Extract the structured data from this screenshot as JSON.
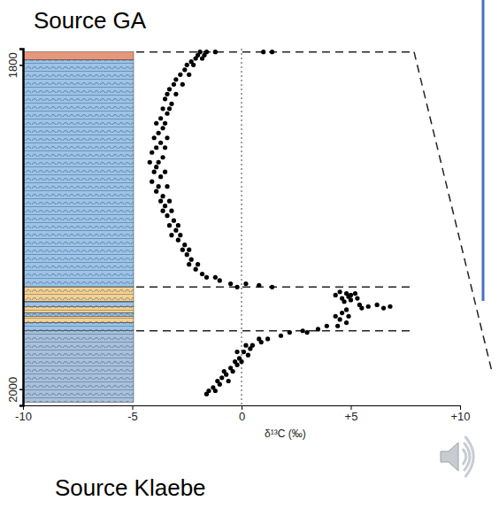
{
  "chart_data": {
    "type": "scatter",
    "title": "Source GA",
    "caption": "Source Klaebe",
    "x_label": "δ¹³C (‰)",
    "xlim": [
      -10,
      10
    ],
    "xticks": [
      -10,
      -5,
      0,
      {
        "value": 5,
        "label": "+5"
      },
      {
        "value": 10,
        "label": "+10"
      }
    ],
    "ylim": [
      2010,
      1790
    ],
    "yticks": [
      1800,
      2000
    ],
    "color": "#000000",
    "marker": "circle",
    "vline": 0,
    "guides": [
      1792,
      1937,
      1964
    ],
    "strata": [
      {
        "top": 1792,
        "bottom": 1797,
        "color": "#e8967a"
      },
      {
        "top": 1797,
        "bottom": 1937,
        "color": "#9dc3e6"
      },
      {
        "top": 1937,
        "bottom": 1946,
        "color": "#f6d08e"
      },
      {
        "top": 1946,
        "bottom": 1949,
        "color": "#9dc3e6"
      },
      {
        "top": 1949,
        "bottom": 1953,
        "color": "#f6d08e"
      },
      {
        "top": 1953,
        "bottom": 1955,
        "color": "#9dc3e6"
      },
      {
        "top": 1955,
        "bottom": 1959,
        "color": "#f6d08e"
      },
      {
        "top": 1959,
        "bottom": 1964,
        "color": "#9dc3e6"
      },
      {
        "top": 1964,
        "bottom": 2008,
        "color": "#a9c0da"
      }
    ],
    "x": [
      -1.9,
      -1.6,
      1.0,
      1.4,
      -1.2,
      -2.0,
      -1.7,
      -2.1,
      -1.8,
      -2.3,
      -2.2,
      -2.5,
      -2.6,
      -2.8,
      -2.4,
      -3.0,
      -3.1,
      -2.7,
      -3.3,
      -3.0,
      -3.4,
      -3.5,
      -3.2,
      -3.6,
      -3.3,
      -3.4,
      -3.7,
      -3.5,
      -3.9,
      -3.6,
      -3.8,
      -3.4,
      -4.0,
      -3.7,
      -3.9,
      -3.5,
      -4.1,
      -3.6,
      -3.8,
      -4.2,
      -3.9,
      -3.5,
      -4.0,
      -3.7,
      -4.1,
      -3.8,
      -3.4,
      -3.9,
      -3.6,
      -3.7,
      -3.3,
      -3.5,
      -3.2,
      -3.6,
      -3.4,
      -3.1,
      -3.3,
      -2.9,
      -3.0,
      -2.8,
      -3.2,
      -2.9,
      -2.6,
      -2.7,
      -2.4,
      -2.5,
      -2.3,
      -2.0,
      -2.4,
      -2.1,
      -1.8,
      -1.6,
      -1.2,
      -1.0,
      -0.5,
      0.2,
      0.8,
      1.4,
      -0.2,
      4.5,
      4.8,
      5.2,
      4.3,
      5.0,
      4.9,
      5.3,
      4.6,
      5.0,
      4.7,
      5.4,
      6.2,
      5.8,
      6.8,
      5.5,
      6.5,
      4.8,
      4.6,
      4.9,
      4.3,
      4.5,
      4.8,
      4.4,
      3.9,
      3.5,
      2.8,
      2.2,
      3.0,
      1.8,
      1.2,
      0.8,
      0.9,
      0.5,
      0.2,
      0.4,
      0.1,
      -0.2,
      0.3,
      -0.1,
      -0.3,
      0,
      -0.2,
      -0.5,
      -0.4,
      -0.8,
      -0.7,
      -0.9,
      -1.1,
      -0.6,
      -1.0,
      -1.3,
      -1.5,
      -1.2,
      -1.6
    ],
    "values": [
      1792,
      1792,
      1792,
      1792,
      1792,
      1794,
      1794,
      1796,
      1796,
      1798,
      1800,
      1800,
      1803,
      1806,
      1806,
      1809,
      1812,
      1812,
      1815,
      1818,
      1818,
      1821,
      1824,
      1827,
      1827,
      1830,
      1833,
      1836,
      1836,
      1839,
      1842,
      1845,
      1845,
      1848,
      1851,
      1851,
      1854,
      1857,
      1860,
      1860,
      1863,
      1866,
      1866,
      1869,
      1872,
      1875,
      1875,
      1878,
      1881,
      1884,
      1884,
      1887,
      1890,
      1890,
      1893,
      1896,
      1899,
      1899,
      1902,
      1905,
      1905,
      1908,
      1911,
      1914,
      1914,
      1917,
      1920,
      1923,
      1923,
      1926,
      1929,
      1931,
      1931,
      1933,
      1935,
      1935,
      1936,
      1937,
      1937,
      1940,
      1941,
      1941,
      1942,
      1942,
      1943,
      1944,
      1944,
      1945,
      1946,
      1948,
      1948,
      1949,
      1949,
      1950,
      1950,
      1951,
      1953,
      1955,
      1955,
      1957,
      1959,
      1961,
      1961,
      1963,
      1964,
      1965,
      1965,
      1967,
      1969,
      1969,
      1971,
      1973,
      1973,
      1975,
      1977,
      1977,
      1979,
      1981,
      1983,
      1983,
      1985,
      1987,
      1989,
      1989,
      1991,
      1993,
      1995,
      1995,
      1997,
      1999,
      2001,
      2001,
      2003
    ]
  }
}
